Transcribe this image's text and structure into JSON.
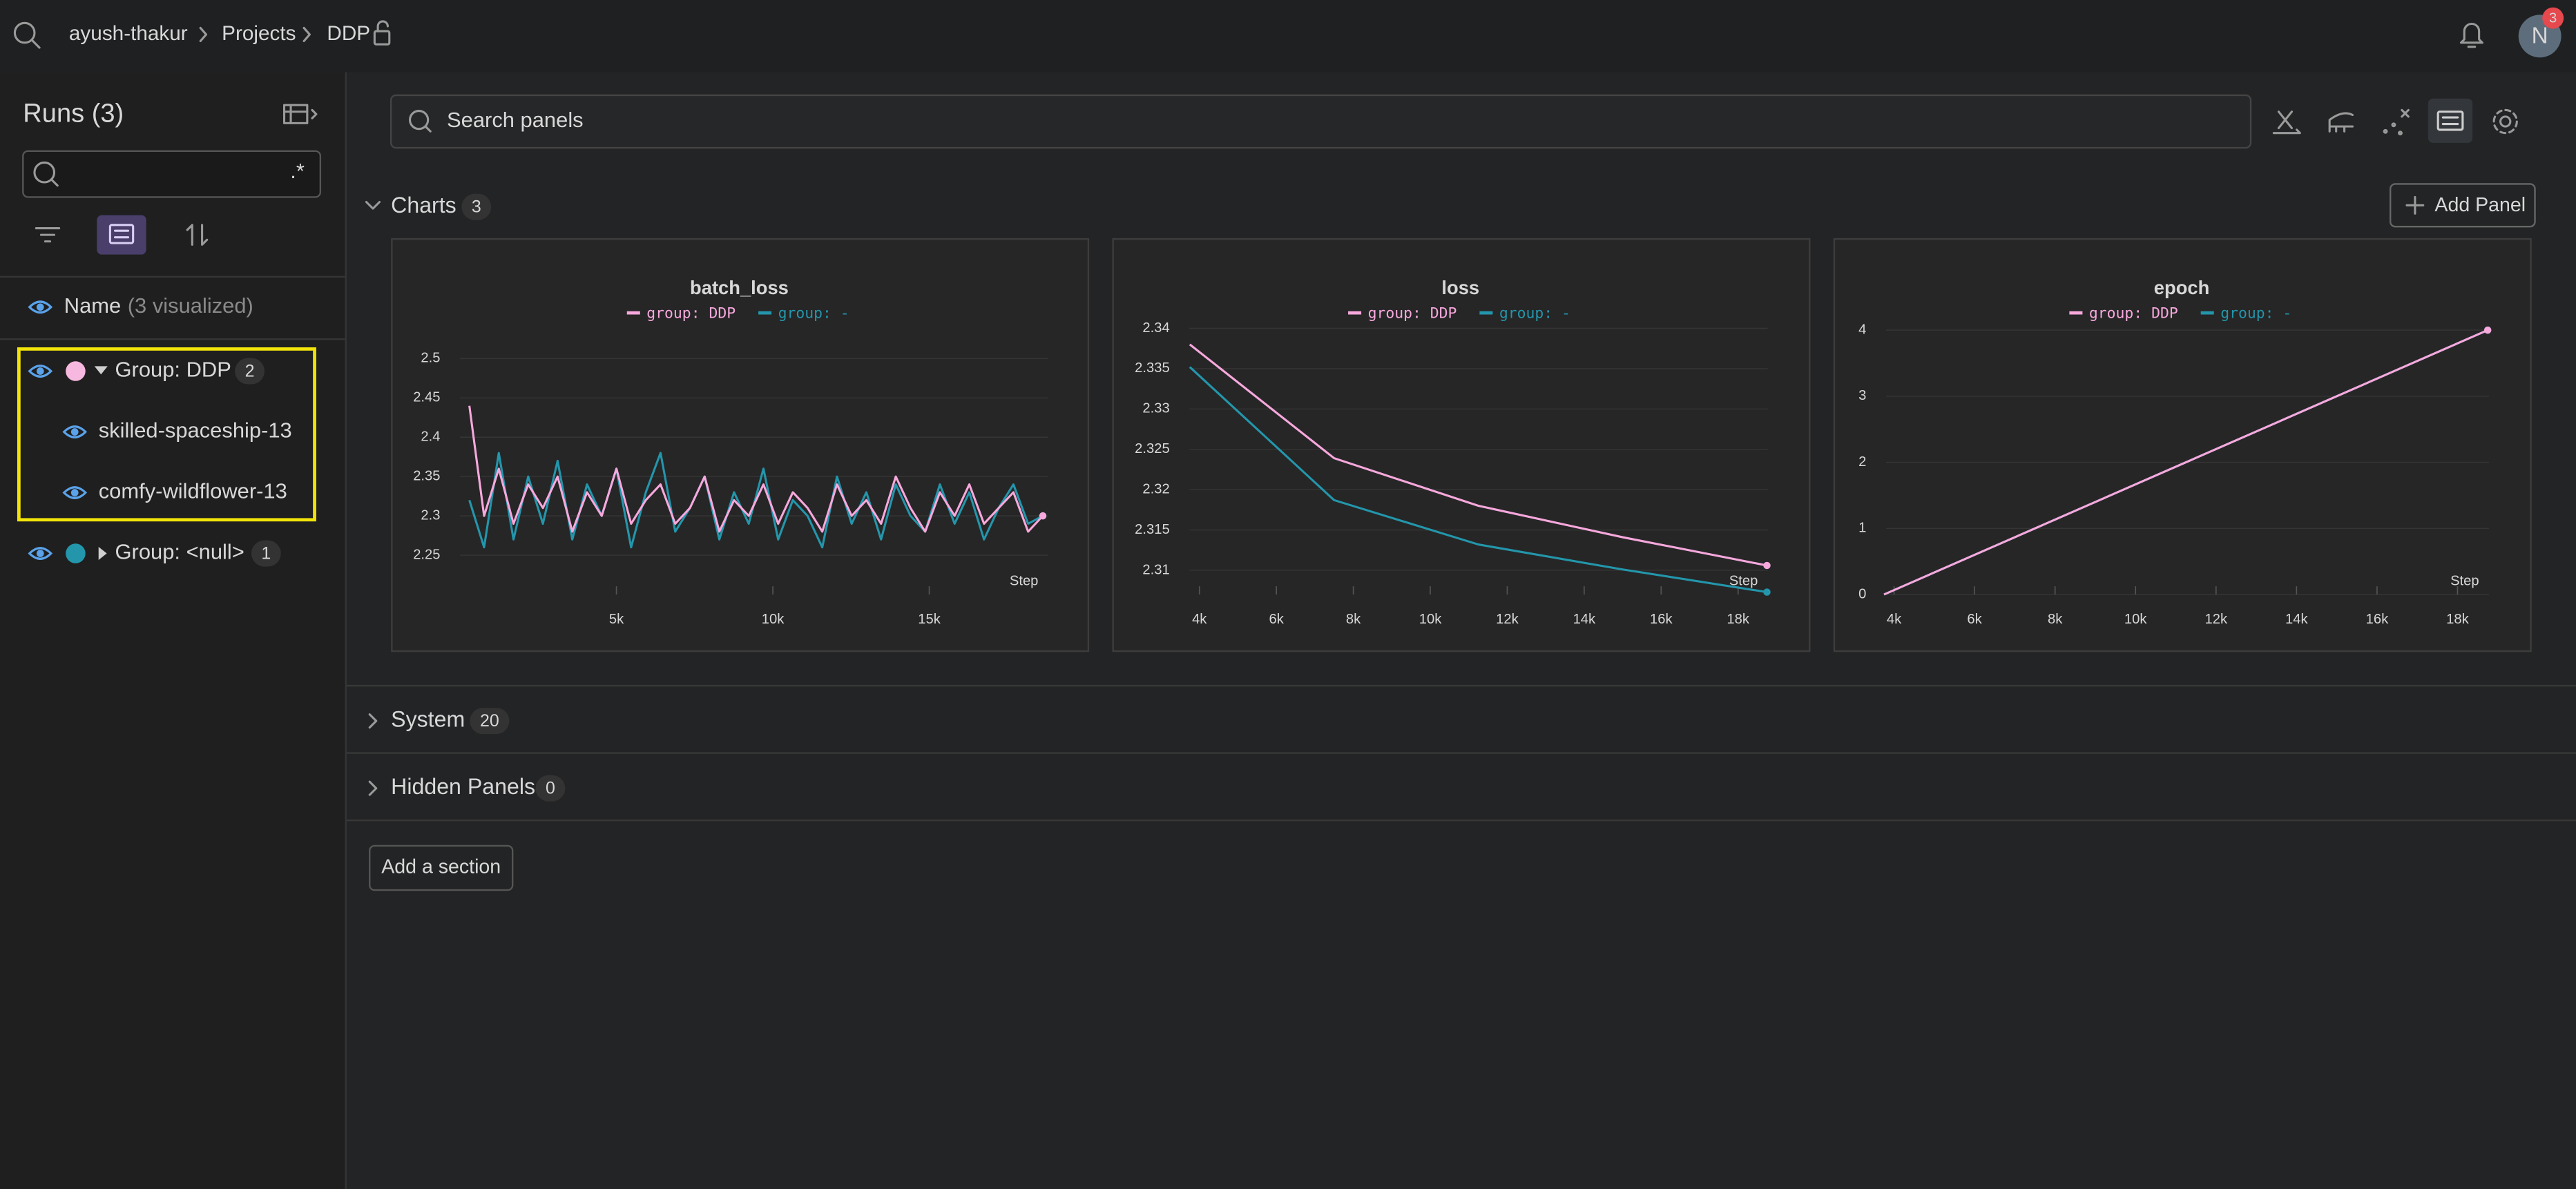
{
  "header": {
    "breadcrumb": [
      "ayush-thakur",
      "Projects",
      "DDP"
    ],
    "avatar": "N",
    "notifications": 3
  },
  "sidebar": {
    "title": "Runs (3)",
    "regex": ".*",
    "name_column": "Name",
    "visualized": "(3 visualized)",
    "groups": [
      {
        "label": "Group: DDP",
        "count": 2,
        "runs": [
          "skilled-spaceship-13",
          "comfy-wildflower-13"
        ]
      },
      {
        "label": "Group: <null>",
        "count": 1
      }
    ]
  },
  "search_placeholder": "Search panels",
  "sections": [
    {
      "title": "Charts",
      "count": 3
    },
    {
      "title": "System",
      "count": 20
    },
    {
      "title": "Hidden Panels",
      "count": 0
    }
  ],
  "add_panel": "Add Panel",
  "add_section": "Add a section",
  "chart_data": [
    {
      "type": "line",
      "title": "batch_loss",
      "xlabel": "Step",
      "grid": true,
      "x": [
        300,
        770,
        1240,
        1710,
        2180,
        2650,
        3120,
        3590,
        4060,
        4530,
        5000,
        5470,
        5940,
        6410,
        6880,
        7350,
        7820,
        8290,
        8760,
        9230,
        9700,
        10170,
        10640,
        11110,
        11580,
        12050,
        12520,
        12990,
        13460,
        13930,
        14400,
        14870,
        15340,
        15810,
        16280,
        16750,
        17220,
        17690,
        18160,
        18630
      ],
      "series": [
        {
          "name": "group: DDP",
          "color": "#f7a8dc",
          "values": [
            2.44,
            2.3,
            2.36,
            2.29,
            2.34,
            2.31,
            2.35,
            2.28,
            2.33,
            2.3,
            2.36,
            2.29,
            2.32,
            2.34,
            2.29,
            2.31,
            2.35,
            2.28,
            2.32,
            2.3,
            2.34,
            2.29,
            2.33,
            2.31,
            2.28,
            2.34,
            2.3,
            2.32,
            2.29,
            2.35,
            2.31,
            2.28,
            2.33,
            2.3,
            2.34,
            2.29,
            2.31,
            2.33,
            2.28,
            2.3
          ]
        },
        {
          "name": "group: -",
          "color": "#2396ab",
          "values": [
            2.32,
            2.26,
            2.38,
            2.27,
            2.35,
            2.29,
            2.37,
            2.27,
            2.34,
            2.3,
            2.36,
            2.26,
            2.33,
            2.38,
            2.28,
            2.31,
            2.35,
            2.27,
            2.33,
            2.29,
            2.36,
            2.27,
            2.32,
            2.3,
            2.26,
            2.35,
            2.29,
            2.33,
            2.27,
            2.34,
            2.3,
            2.28,
            2.34,
            2.29,
            2.33,
            2.27,
            2.31,
            2.34,
            2.29,
            2.3
          ]
        }
      ],
      "xlim": [
        0,
        18800
      ],
      "ylim": [
        2.2,
        2.53
      ],
      "xticks": [
        {
          "value": 5000,
          "label": "5k"
        },
        {
          "value": 10000,
          "label": "10k"
        },
        {
          "value": 15000,
          "label": "15k"
        }
      ],
      "yticks": [
        2.25,
        2.3,
        2.35,
        2.4,
        2.45,
        2.5
      ]
    },
    {
      "type": "line",
      "title": "loss",
      "xlabel": "Step",
      "grid": true,
      "x": [
        3750,
        7500,
        11250,
        15000,
        18750
      ],
      "series": [
        {
          "name": "group: DDP",
          "color": "#f7a8dc",
          "values": [
            2.338,
            2.3239,
            2.318,
            2.3141,
            2.3106
          ]
        },
        {
          "name": "group: -",
          "color": "#2396ab",
          "values": [
            2.3352,
            2.3187,
            2.3132,
            2.3101,
            2.3073
          ]
        }
      ],
      "xlim": [
        3740,
        18770
      ],
      "ylim": [
        2.307,
        2.341
      ],
      "xticks": [
        {
          "value": 4000,
          "label": "4k"
        },
        {
          "value": 6000,
          "label": "6k"
        },
        {
          "value": 8000,
          "label": "8k"
        },
        {
          "value": 10000,
          "label": "10k"
        },
        {
          "value": 12000,
          "label": "12k"
        },
        {
          "value": 14000,
          "label": "14k"
        },
        {
          "value": 16000,
          "label": "16k"
        },
        {
          "value": 18000,
          "label": "18k"
        }
      ],
      "yticks": [
        2.31,
        2.315,
        2.32,
        2.325,
        2.33,
        2.335,
        2.34
      ]
    },
    {
      "type": "line",
      "title": "epoch",
      "xlabel": "Step",
      "grid": true,
      "x": [
        3750,
        7500,
        11250,
        15000,
        18750
      ],
      "series": [
        {
          "name": "group: DDP",
          "color": "#f7a8dc",
          "values": [
            0,
            1,
            2,
            3,
            4
          ]
        },
        {
          "name": "group: -",
          "color": "#2396ab",
          "values": [
            0,
            1,
            2,
            3,
            4
          ]
        }
      ],
      "xlim": [
        3800,
        18780
      ],
      "ylim": [
        0,
        4.1
      ],
      "xticks": [
        {
          "value": 4000,
          "label": "4k"
        },
        {
          "value": 6000,
          "label": "6k"
        },
        {
          "value": 8000,
          "label": "8k"
        },
        {
          "value": 10000,
          "label": "10k"
        },
        {
          "value": 12000,
          "label": "12k"
        },
        {
          "value": 14000,
          "label": "14k"
        },
        {
          "value": 16000,
          "label": "16k"
        },
        {
          "value": 18000,
          "label": "18k"
        }
      ],
      "yticks": [
        0,
        1,
        2,
        3,
        4
      ]
    }
  ]
}
